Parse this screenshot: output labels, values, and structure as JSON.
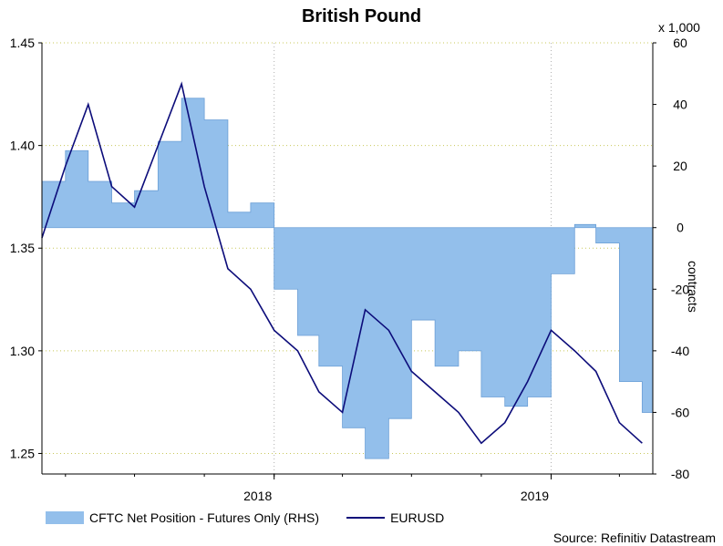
{
  "title": "British Pound",
  "multiplier": "x 1,000",
  "source": "Source: Refinitiv Datastream",
  "colors": {
    "area_fill": "#93bfeb",
    "area_stroke": "#6b9fd6",
    "line": "#0c0c7a",
    "grid": "#c8c85a"
  },
  "chart_data": {
    "type": "line",
    "title": "British Pound",
    "x": {
      "ticks": [
        "2018",
        "2019"
      ],
      "range": [
        "2017-03",
        "2019-05"
      ]
    },
    "y_left": {
      "ticks": [
        "1.25",
        "1.30",
        "1.35",
        "1.40",
        "1.45"
      ],
      "range": [
        1.24,
        1.45
      ]
    },
    "y_right": {
      "ticks": [
        "60",
        "40",
        "20",
        "0",
        "-20",
        "-40",
        "-60",
        "-80"
      ],
      "range": [
        -80,
        60
      ],
      "label": "contracts"
    },
    "legend": [
      "CFTC Net Position - Futures Only (RHS)",
      "EURUSD"
    ],
    "grid": true,
    "series": [
      {
        "name": "CFTC Net Position - Futures Only (RHS)",
        "axis": "right",
        "type": "area",
        "x": [
          "2017-03",
          "2017-04",
          "2017-05",
          "2017-06",
          "2017-07",
          "2017-08",
          "2017-09",
          "2017-10",
          "2017-11",
          "2017-12",
          "2018-01",
          "2018-02",
          "2018-03",
          "2018-04",
          "2018-05",
          "2018-06",
          "2018-07",
          "2018-08",
          "2018-09",
          "2018-10",
          "2018-11",
          "2018-12",
          "2019-01",
          "2019-02",
          "2019-03",
          "2019-04",
          "2019-05"
        ],
        "values": [
          15,
          25,
          15,
          8,
          12,
          28,
          42,
          35,
          5,
          8,
          -20,
          -35,
          -45,
          -65,
          -75,
          -62,
          -30,
          -45,
          -40,
          -55,
          -58,
          -55,
          -15,
          1,
          -5,
          -50,
          -60
        ]
      },
      {
        "name": "EURUSD",
        "axis": "left",
        "type": "line",
        "x": [
          "2017-03",
          "2017-04",
          "2017-05",
          "2017-06",
          "2017-07",
          "2017-08",
          "2017-09",
          "2017-10",
          "2017-11",
          "2017-12",
          "2018-01",
          "2018-02",
          "2018-03",
          "2018-04",
          "2018-05",
          "2018-06",
          "2018-07",
          "2018-08",
          "2018-09",
          "2018-10",
          "2018-11",
          "2018-12",
          "2019-01",
          "2019-02",
          "2019-03",
          "2019-04",
          "2019-05"
        ],
        "values": [
          1.355,
          1.39,
          1.42,
          1.38,
          1.37,
          1.4,
          1.43,
          1.38,
          1.34,
          1.33,
          1.31,
          1.3,
          1.28,
          1.27,
          1.32,
          1.31,
          1.29,
          1.28,
          1.27,
          1.255,
          1.265,
          1.285,
          1.31,
          1.3,
          1.29,
          1.265,
          1.255
        ]
      }
    ]
  }
}
